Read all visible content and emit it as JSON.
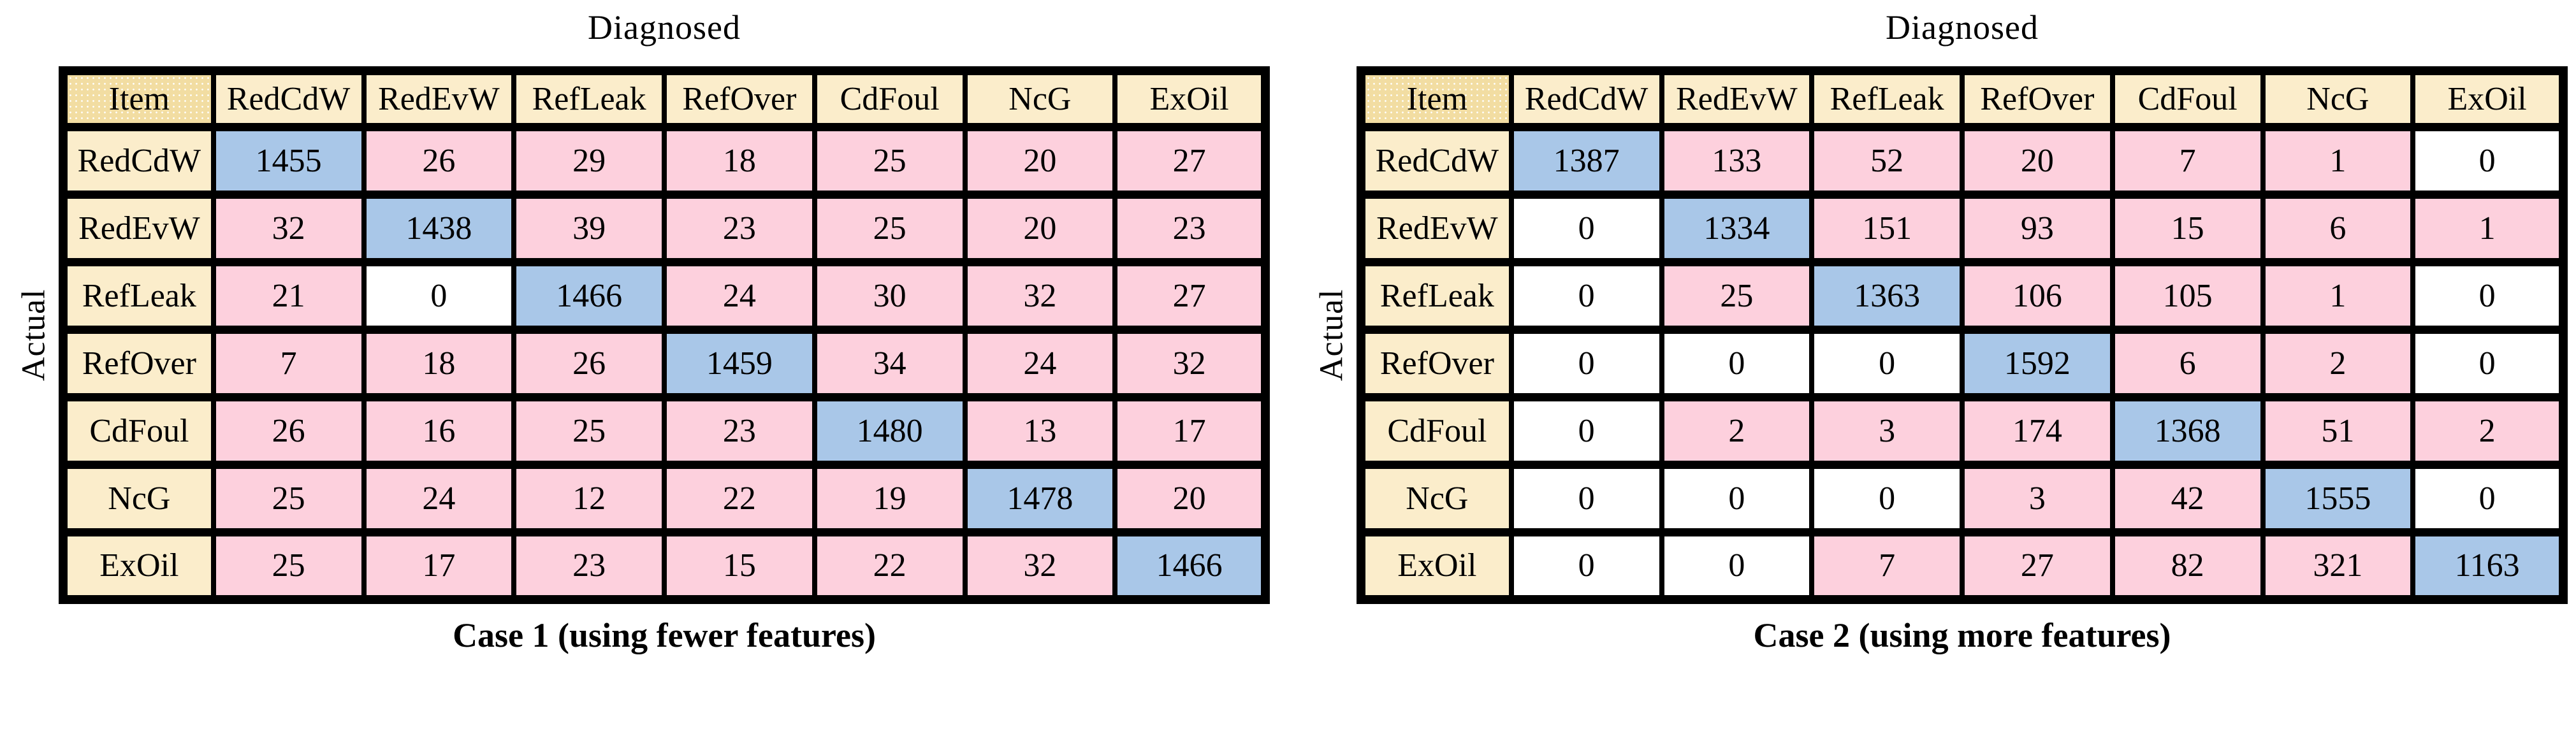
{
  "colors": {
    "header_bg": "#fbedcb",
    "corner_bg": "#f2dda2",
    "diagonal_bg": "#a9c7e8",
    "offdiag_bg": "#fdd0dd",
    "zero_bg": "#ffffff",
    "border": "#000000"
  },
  "chart_data": [
    {
      "type": "heatmap",
      "title": "Case 1 (using fewer features)",
      "xlabel": "Diagnosed",
      "ylabel": "Actual",
      "corner_label": "Item",
      "categories": [
        "RedCdW",
        "RedEvW",
        "RefLeak",
        "RefOver",
        "CdFoul",
        "NcG",
        "ExOil"
      ],
      "row_categories": [
        "RedCdW",
        "RedEvW",
        "RefLeak",
        "RefOver",
        "CdFoul",
        "NcG",
        "ExOil"
      ],
      "matrix": [
        [
          1455,
          26,
          29,
          18,
          25,
          20,
          27
        ],
        [
          32,
          1438,
          39,
          23,
          25,
          20,
          23
        ],
        [
          21,
          0,
          1466,
          24,
          30,
          32,
          27
        ],
        [
          7,
          18,
          26,
          1459,
          34,
          24,
          32
        ],
        [
          26,
          16,
          25,
          23,
          1480,
          13,
          17
        ],
        [
          25,
          24,
          12,
          22,
          19,
          1478,
          20
        ],
        [
          25,
          17,
          23,
          15,
          22,
          32,
          1466
        ]
      ],
      "legend": "diagonal cells blue, non-zero off-diagonal cells pink, zero cells white",
      "grid": true
    },
    {
      "type": "heatmap",
      "title": "Case 2 (using more features)",
      "xlabel": "Diagnosed",
      "ylabel": "Actual",
      "corner_label": "Item",
      "categories": [
        "RedCdW",
        "RedEvW",
        "RefLeak",
        "RefOver",
        "CdFoul",
        "NcG",
        "ExOil"
      ],
      "row_categories": [
        "RedCdW",
        "RedEvW",
        "RefLeak",
        "RefOver",
        "CdFoul",
        "NcG",
        "ExOil"
      ],
      "matrix": [
        [
          1387,
          133,
          52,
          20,
          7,
          1,
          0
        ],
        [
          0,
          1334,
          151,
          93,
          15,
          6,
          1
        ],
        [
          0,
          25,
          1363,
          106,
          105,
          1,
          0
        ],
        [
          0,
          0,
          0,
          1592,
          6,
          2,
          0
        ],
        [
          0,
          2,
          3,
          174,
          1368,
          51,
          2
        ],
        [
          0,
          0,
          0,
          3,
          42,
          1555,
          0
        ],
        [
          0,
          0,
          7,
          27,
          82,
          321,
          1163
        ]
      ],
      "legend": "diagonal cells blue, non-zero off-diagonal cells pink, zero cells white",
      "grid": true
    }
  ]
}
